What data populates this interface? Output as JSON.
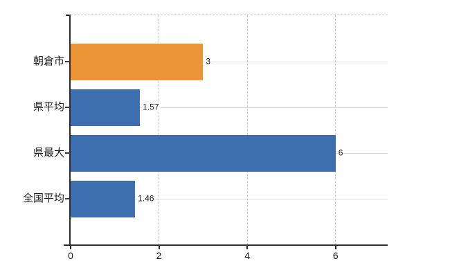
{
  "chart_data": {
    "type": "bar",
    "orientation": "horizontal",
    "title": "",
    "xlabel": "",
    "ylabel": "",
    "categories": [
      "朝倉市",
      "県平均",
      "県最大",
      "全国平均"
    ],
    "values": [
      3,
      1.57,
      6,
      1.46
    ],
    "value_labels": [
      "3",
      "1.57",
      "6",
      "1.46"
    ],
    "bar_colors": [
      "#ec9438",
      "#3d6fb0",
      "#3d6fb0",
      "#3d6fb0"
    ],
    "xlim": [
      0,
      7.18
    ],
    "xticks": [
      0,
      2,
      4,
      6
    ],
    "xtick_labels": [
      "0",
      "2",
      "4",
      "6"
    ],
    "grid": true,
    "legend": false,
    "colors": {
      "highlight_bar": "#ec9438",
      "default_bar": "#3d6fb0",
      "gridline": "#d9d9d9",
      "dashed_line": "#c9c9c9",
      "axis": "#2b2b2b",
      "text": "#1b1b1b"
    }
  }
}
